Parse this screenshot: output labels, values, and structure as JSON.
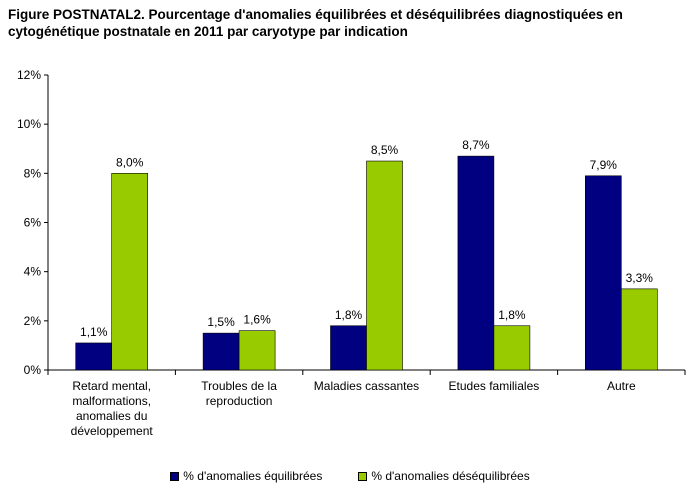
{
  "chart_data": {
    "type": "bar",
    "title": "Figure POSTNATAL2. Pourcentage d'anomalies équilibrées et déséquilibrées diagnostiquées en cytogénétique postnatale en 2011 par caryotype par indication",
    "categories": [
      "Retard mental, malformations, anomalies du développement",
      "Troubles de la reproduction",
      "Maladies cassantes",
      "Etudes familiales",
      "Autre"
    ],
    "category_lines": [
      [
        "Retard mental,",
        "malformations,",
        "anomalies du",
        "développement"
      ],
      [
        "Troubles de la",
        "reproduction"
      ],
      [
        "Maladies cassantes"
      ],
      [
        "Etudes familiales"
      ],
      [
        "Autre"
      ]
    ],
    "series": [
      {
        "name": "% d'anomalies équilibrées",
        "color": "#000080",
        "values": [
          1.1,
          1.5,
          1.8,
          8.7,
          7.9
        ],
        "labels": [
          "1,1%",
          "1,5%",
          "1,8%",
          "8,7%",
          "7,9%"
        ]
      },
      {
        "name": "% d'anomalies déséquilibrées",
        "color": "#99CC00",
        "values": [
          8.0,
          1.6,
          8.5,
          1.8,
          3.3
        ],
        "labels": [
          "8,0%",
          "1,6%",
          "8,5%",
          "1,8%",
          "3,3%"
        ]
      }
    ],
    "ylim": [
      0,
      12
    ],
    "yticks": [
      0,
      2,
      4,
      6,
      8,
      10,
      12
    ],
    "ytick_labels": [
      "0%",
      "2%",
      "4%",
      "6%",
      "8%",
      "10%",
      "12%"
    ],
    "grid": false,
    "legend_position": "bottom"
  }
}
